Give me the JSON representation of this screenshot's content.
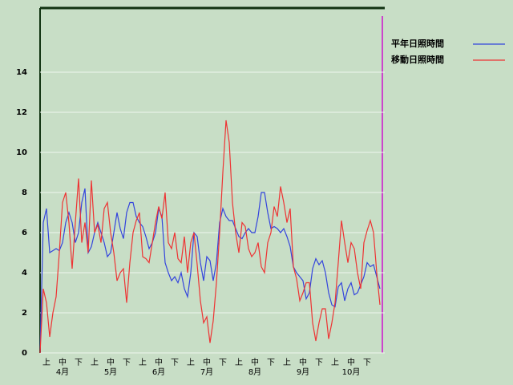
{
  "chart_data": {
    "type": "line",
    "categories": [
      null,
      null,
      "上",
      null,
      null,
      null,
      null,
      "中",
      null,
      null,
      null,
      null,
      "下",
      null,
      null,
      null,
      null,
      "上",
      null,
      null,
      null,
      null,
      "中",
      null,
      null,
      null,
      null,
      "下",
      null,
      null,
      null,
      null,
      "上",
      null,
      null,
      null,
      null,
      "中",
      null,
      null,
      null,
      null,
      "下",
      null,
      null,
      null,
      null,
      "上",
      null,
      null,
      null,
      null,
      "中",
      null,
      null,
      null,
      null,
      "下",
      null,
      null,
      null,
      null,
      "上",
      null,
      null,
      null,
      null,
      "中",
      null,
      null,
      null,
      null,
      "下",
      null,
      null,
      null,
      null,
      "上",
      null,
      null,
      null,
      null,
      "中",
      null,
      null,
      null,
      null,
      "下",
      null,
      null,
      null,
      null,
      "上",
      null,
      null,
      null,
      null,
      "中",
      null,
      null,
      null,
      null,
      "下",
      null,
      null,
      null,
      null
    ],
    "months": [
      "4月",
      "5月",
      "6月",
      "7月",
      "8月",
      "9月",
      "10月"
    ],
    "series": [
      {
        "name": "平年日照時間",
        "color": "#3344dd",
        "values": [
          0,
          6.5,
          7.2,
          5,
          5.1,
          5.2,
          5.1,
          5.5,
          6.5,
          7,
          6.5,
          5.5,
          6,
          7.5,
          8.2,
          5,
          5.3,
          6,
          6.5,
          6,
          5.5,
          4.8,
          5,
          6,
          7,
          6.2,
          5.7,
          7,
          7.5,
          7.5,
          6.8,
          6.5,
          6.3,
          5.8,
          5.2,
          5.5,
          6,
          7.2,
          6.8,
          4.5,
          4,
          3.6,
          3.8,
          3.5,
          4,
          3.2,
          2.8,
          4,
          6,
          5.8,
          4.5,
          3.6,
          4.8,
          4.6,
          3.6,
          4.5,
          6.5,
          7.2,
          6.8,
          6.6,
          6.6,
          6.2,
          5.8,
          5.7,
          6,
          6.2,
          6,
          6,
          6.8,
          8,
          8,
          7,
          6.2,
          6.3,
          6.2,
          6,
          6.2,
          5.8,
          5.3,
          4.3,
          4,
          3.8,
          3.6,
          2.7,
          3,
          4.2,
          4.7,
          4.4,
          4.6,
          4,
          3,
          2.4,
          2.3,
          3.3,
          3.5,
          2.6,
          3.2,
          3.5,
          2.9,
          3,
          3.4,
          3.8,
          4.5,
          4.3,
          4.4,
          3.8,
          3.2
        ]
      },
      {
        "name": "移動日照時間",
        "color": "#ee3333",
        "values": [
          0,
          3.2,
          2.5,
          0.8,
          2,
          2.8,
          5,
          7.5,
          8,
          6.5,
          4.2,
          6.5,
          8.7,
          5.5,
          6.5,
          5,
          8.6,
          6,
          6.4,
          5.5,
          7.2,
          7.5,
          6,
          5,
          3.6,
          4,
          4.2,
          2.5,
          4.5,
          6,
          6.6,
          7,
          4.8,
          4.7,
          4.5,
          5.5,
          6.5,
          7.3,
          6.7,
          8,
          5.5,
          5.2,
          6,
          4.7,
          4.5,
          5.8,
          4,
          5.5,
          6,
          4.4,
          2.6,
          1.5,
          1.8,
          0.5,
          1.6,
          3.5,
          6,
          9,
          11.6,
          10.5,
          7.5,
          6,
          5,
          6.5,
          6.3,
          5.2,
          4.8,
          5,
          5.5,
          4.3,
          4,
          5.5,
          6,
          7.3,
          6.8,
          8.3,
          7.5,
          6.5,
          7.2,
          4.3,
          3.7,
          2.6,
          3,
          3.5,
          3.5,
          1.5,
          0.6,
          1.5,
          2.2,
          2.2,
          0.7,
          1.5,
          2.5,
          4.5,
          6.6,
          5.5,
          4.5,
          5.5,
          5.2,
          4,
          3.2,
          5.5,
          6.1,
          6.6,
          6,
          4,
          2.4
        ]
      }
    ],
    "ylim": [
      0,
      17.2
    ],
    "yticks": [
      0,
      2,
      4,
      6,
      8,
      10,
      12,
      14
    ],
    "grid": true
  }
}
